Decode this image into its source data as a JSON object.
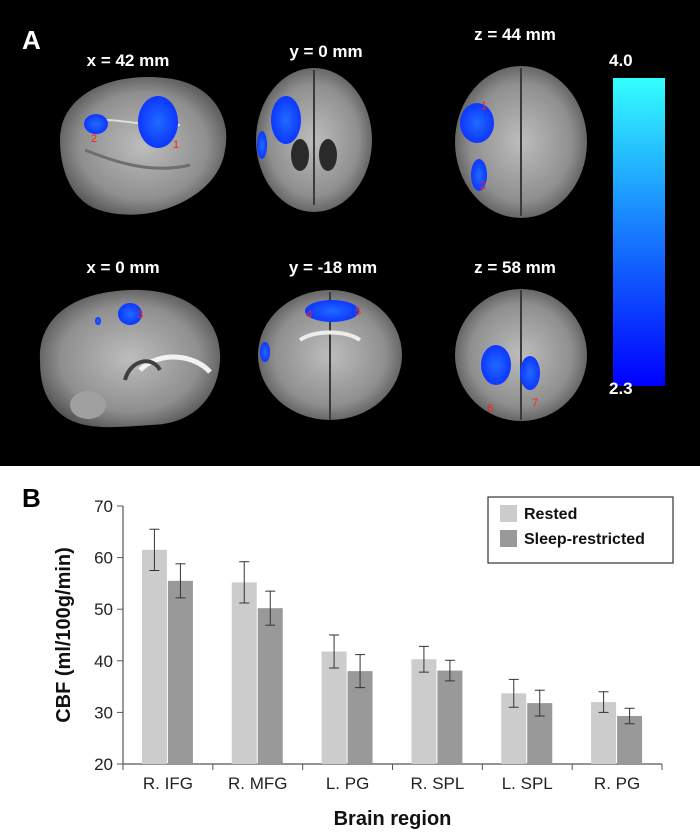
{
  "panel_a": {
    "label": "A",
    "slices": [
      {
        "label": "x = 42 mm",
        "markers": [
          "2",
          "1"
        ]
      },
      {
        "label": "y = 0 mm",
        "markers": []
      },
      {
        "label": "z = 44 mm",
        "markers": [
          "1",
          "2"
        ]
      },
      {
        "label": "x = 0 mm",
        "markers": [
          "3"
        ]
      },
      {
        "label": "y = -18 mm",
        "markers": [
          "4",
          "5"
        ]
      },
      {
        "label": "z = 58 mm",
        "markers": [
          "6",
          "7"
        ]
      }
    ],
    "colorbar": {
      "max_label": "4.0",
      "min_label": "2.3",
      "max_color": "#33ffff",
      "min_color": "#0000ff"
    }
  },
  "panel_b": {
    "label": "B"
  },
  "chart_data": {
    "type": "bar",
    "xlabel": "Brain region",
    "ylabel": "CBF (ml/100g/min)",
    "ylim": [
      20,
      70
    ],
    "yticks": [
      20,
      30,
      40,
      50,
      60,
      70
    ],
    "categories": [
      "R. IFG",
      "R. MFG",
      "L. PG",
      "R. SPL",
      "L. SPL",
      "R. PG"
    ],
    "series": [
      {
        "name": "Rested",
        "color": "#cccccc",
        "values": [
          61.5,
          55.2,
          41.8,
          40.3,
          33.7,
          32.0
        ],
        "errors": [
          4.0,
          4.0,
          3.2,
          2.5,
          2.7,
          2.0
        ]
      },
      {
        "name": "Sleep-restricted",
        "color": "#999999",
        "values": [
          55.5,
          50.2,
          38.0,
          38.1,
          31.8,
          29.3
        ],
        "errors": [
          3.3,
          3.3,
          3.2,
          2.0,
          2.5,
          1.5
        ]
      }
    ],
    "legend_position": "top-right",
    "grid": false
  }
}
